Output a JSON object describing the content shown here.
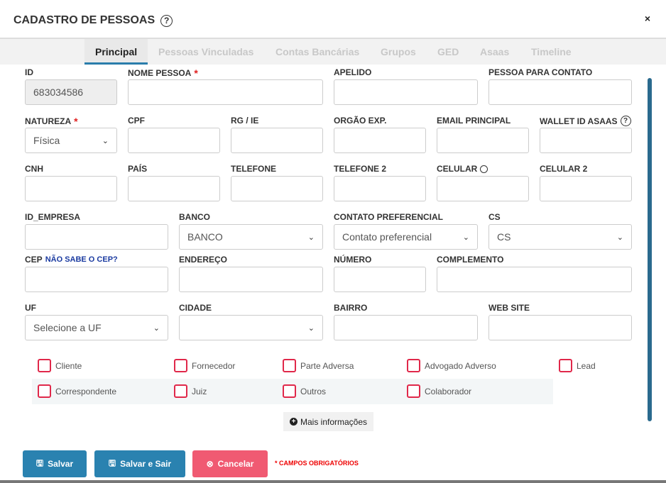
{
  "header": {
    "title": "CADASTRO DE PESSOAS",
    "help_icon": "question-circle-icon",
    "close_label": "×"
  },
  "tabs": [
    {
      "label": "Principal",
      "active": true
    },
    {
      "label": "Pessoas Vinculadas"
    },
    {
      "label": "Contas Bancárias"
    },
    {
      "label": "Grupos"
    },
    {
      "label": "GED"
    },
    {
      "label": "Asaas"
    },
    {
      "label": "Timeline"
    }
  ],
  "fields": [
    {
      "name": "id",
      "label": "ID",
      "value": "683034586",
      "disabled": true
    },
    {
      "name": "nome-pessoa",
      "label": "NOME PESSOA",
      "required": true,
      "value": ""
    },
    {
      "name": "apelido",
      "label": "APELIDO",
      "value": ""
    },
    {
      "name": "pessoa-para-contato",
      "label": "PESSOA PARA CONTATO",
      "value": ""
    },
    {
      "name": "natureza",
      "label": "NATUREZA",
      "required": true,
      "select": true,
      "value": "Física"
    },
    {
      "name": "cpf",
      "label": "CPF",
      "value": ""
    },
    {
      "name": "rg-ie",
      "label": "RG / IE",
      "value": ""
    },
    {
      "name": "orgao-exp",
      "label": "ORGÃO EXP.",
      "value": ""
    },
    {
      "name": "email-principal",
      "label": "EMAIL PRINCIPAL",
      "value": ""
    },
    {
      "name": "wallet-id-asaas",
      "label": "WALLET ID ASAAS",
      "help": true,
      "value": ""
    },
    {
      "name": "cnh",
      "label": "CNH",
      "value": ""
    },
    {
      "name": "pais",
      "label": "PAÍS",
      "value": ""
    },
    {
      "name": "telefone",
      "label": "TELEFONE",
      "value": ""
    },
    {
      "name": "telefone-2",
      "label": "TELEFONE 2",
      "value": ""
    },
    {
      "name": "celular",
      "label": "CELULAR",
      "whatsapp": true,
      "value": ""
    },
    {
      "name": "celular-2",
      "label": "CELULAR 2",
      "value": ""
    },
    {
      "name": "id-empresa",
      "label": "ID_EMPRESA",
      "value": ""
    },
    {
      "name": "banco",
      "label": "BANCO",
      "select": true,
      "value": "BANCO"
    },
    {
      "name": "contato-preferencial",
      "label": "CONTATO PREFERENCIAL",
      "select": true,
      "value": "Contato preferencial"
    },
    {
      "name": "cs",
      "label": "CS",
      "select": true,
      "value": "CS"
    },
    {
      "name": "cep",
      "label": "CEP",
      "link": "NÃO SABE O CEP?",
      "value": ""
    },
    {
      "name": "endereco",
      "label": "ENDEREÇO",
      "value": ""
    },
    {
      "name": "numero",
      "label": "NÚMERO",
      "value": ""
    },
    {
      "name": "complemento",
      "label": "COMPLEMENTO",
      "value": ""
    },
    {
      "name": "uf",
      "label": "UF",
      "select": true,
      "value": "Selecione a UF"
    },
    {
      "name": "cidade",
      "label": "CIDADE",
      "select": true,
      "value": ""
    },
    {
      "name": "bairro",
      "label": "BAIRRO",
      "value": ""
    },
    {
      "name": "web-site",
      "label": "WEB SITE",
      "value": ""
    }
  ],
  "checkboxes": [
    {
      "label": "Cliente",
      "checked": false
    },
    {
      "label": "Fornecedor",
      "checked": false
    },
    {
      "label": "Parte Adversa",
      "checked": false
    },
    {
      "label": "Advogado Adverso",
      "checked": false
    },
    {
      "label": "Lead",
      "checked": false
    },
    {
      "label": "Correspondente",
      "checked": false
    },
    {
      "label": "Juiz",
      "checked": false
    },
    {
      "label": "Outros",
      "checked": false
    },
    {
      "label": "Colaborador",
      "checked": false
    }
  ],
  "more_label": "Mais informações",
  "actions": {
    "save": "Salvar",
    "save_exit": "Salvar e Sair",
    "cancel": "Cancelar",
    "required_note": "* CAMPOS OBRIGATÓRIOS"
  },
  "colors": {
    "primary": "#2a82b0",
    "danger": "#f05a72",
    "required": "#e00000",
    "checkbox": "#e0284a"
  }
}
